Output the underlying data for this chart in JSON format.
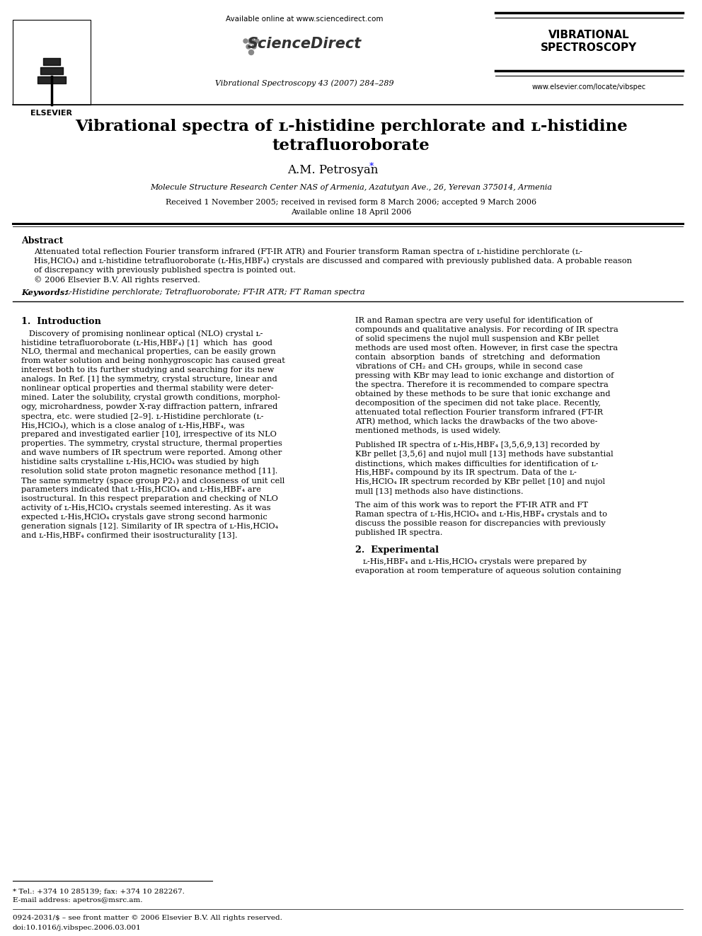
{
  "bg_color": "#ffffff",
  "available_online": "Available online at www.sciencedirect.com",
  "journal_name": "Vibrational Spectroscopy 43 (2007) 284–289",
  "journal_title_line1": "VIBRATIONAL",
  "journal_title_line2": "SPECTROSCOPY",
  "website": "www.elsevier.com/locate/vibspec",
  "elsevier_label": "ELSEVIER",
  "paper_title_line1": "Vibrational spectra of ʟ-histidine perchlorate and ʟ-histidine",
  "paper_title_line2": "tetrafluoroborate",
  "authors": "A.M. Petrosyan",
  "affiliation": "Molecule Structure Research Center NAS of Armenia, Azatutyan Ave., 26, Yerevan 375014, Armenia",
  "received_line1": "Received 1 November 2005; received in revised form 8 March 2006; accepted 9 March 2006",
  "received_line2": "Available online 18 April 2006",
  "abstract_title": "Abstract",
  "abstract_lines": [
    "Attenuated total reflection Fourier transform infrared (FT-IR ATR) and Fourier transform Raman spectra of ʟ-histidine perchlorate (ʟ-",
    "His,HClO₄) and ʟ-histidine tetrafluoroborate (ʟ-His,HBF₄) crystals are discussed and compared with previously published data. A probable reason",
    "of discrepancy with previously published spectra is pointed out.",
    "© 2006 Elsevier B.V. All rights reserved."
  ],
  "keywords_label": "Keywords:",
  "keywords_text": "ʟ-Histidine perchlorate; Tetrafluoroborate; FT-IR ATR; FT Raman spectra",
  "section1_title": "1.  Introduction",
  "col1_lines": [
    "   Discovery of promising nonlinear optical (NLO) crystal ʟ-",
    "histidine tetrafluoroborate (ʟ-His,HBF₄) [1]  which  has  good",
    "NLO, thermal and mechanical properties, can be easily grown",
    "from water solution and being nonhygroscopic has caused great",
    "interest both to its further studying and searching for its new",
    "analogs. In Ref. [1] the symmetry, crystal structure, linear and",
    "nonlinear optical properties and thermal stability were deter-",
    "mined. Later the solubility, crystal growth conditions, morphol-",
    "ogy, microhardness, powder X-ray diffraction pattern, infrared",
    "spectra, etc. were studied [2–9]. ʟ-Histidine perchlorate (ʟ-",
    "His,HClO₄), which is a close analog of ʟ-His,HBF₄, was",
    "prepared and investigated earlier [10], irrespective of its NLO",
    "properties. The symmetry, crystal structure, thermal properties",
    "and wave numbers of IR spectrum were reported. Among other",
    "histidine salts crystalline ʟ-His,HClO₄ was studied by high",
    "resolution solid state proton magnetic resonance method [11].",
    "The same symmetry (space group P2₁) and closeness of unit cell",
    "parameters indicated that ʟ-His,HClO₄ and ʟ-His,HBF₄ are",
    "isostructural. In this respect preparation and checking of NLO",
    "activity of ʟ-His,HClO₄ crystals seemed interesting. As it was",
    "expected ʟ-His,HClO₄ crystals gave strong second harmonic",
    "generation signals [12]. Similarity of IR spectra of ʟ-His,HClO₄",
    "and ʟ-His,HBF₄ confirmed their isostructurality [13]."
  ],
  "col2_block1_lines": [
    "IR and Raman spectra are very useful for identification of",
    "compounds and qualitative analysis. For recording of IR spectra",
    "of solid specimens the nujol mull suspension and KBr pellet",
    "methods are used most often. However, in first case the spectra",
    "contain  absorption  bands  of  stretching  and  deformation",
    "vibrations of CH₂ and CH₃ groups, while in second case",
    "pressing with KBr may lead to ionic exchange and distortion of",
    "the spectra. Therefore it is recommended to compare spectra",
    "obtained by these methods to be sure that ionic exchange and",
    "decomposition of the specimen did not take place. Recently,",
    "attenuated total reflection Fourier transform infrared (FT-IR",
    "ATR) method, which lacks the drawbacks of the two above-",
    "mentioned methods, is used widely."
  ],
  "col2_block2_lines": [
    "Published IR spectra of ʟ-His,HBF₄ [3,5,6,9,13] recorded by",
    "KBr pellet [3,5,6] and nujol mull [13] methods have substantial",
    "distinctions, which makes difficulties for identification of ʟ-",
    "His,HBF₄ compound by its IR spectrum. Data of the ʟ-",
    "His,HClO₄ IR spectrum recorded by KBr pellet [10] and nujol",
    "mull [13] methods also have distinctions."
  ],
  "col2_block3_lines": [
    "The aim of this work was to report the FT-IR ATR and FT",
    "Raman spectra of ʟ-His,HClO₄ and ʟ-His,HBF₄ crystals and to",
    "discuss the possible reason for discrepancies with previously",
    "published IR spectra."
  ],
  "section2_title": "2.  Experimental",
  "col2_exp_lines": [
    "   ʟ-His,HBF₄ and ʟ-His,HClO₄ crystals were prepared by",
    "evaporation at room temperature of aqueous solution containing"
  ],
  "footnote_tel": "* Tel.: +374 10 285139; fax: +374 10 282267.",
  "footnote_email": "E-mail address: apetros@msrc.am.",
  "footer_issn": "0924-2031/$ – see front matter © 2006 Elsevier B.V. All rights reserved.",
  "footer_doi": "doi:10.1016/j.vibspec.2006.03.001"
}
